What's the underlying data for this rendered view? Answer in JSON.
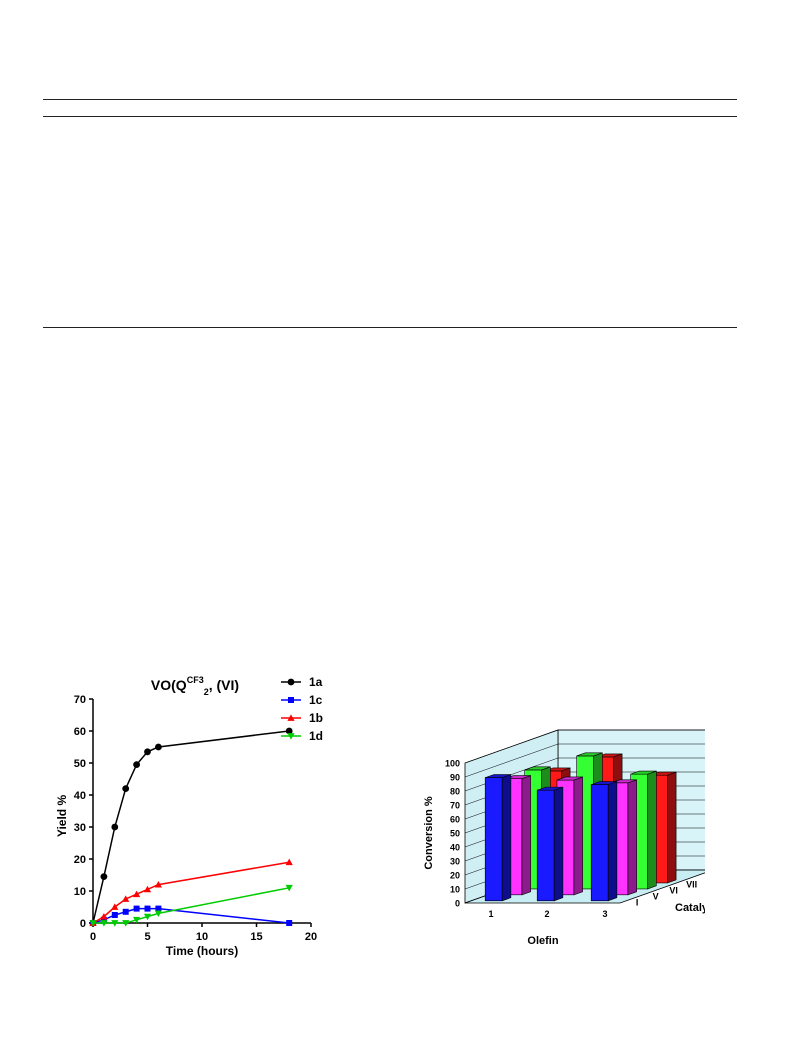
{
  "chart_data": [
    {
      "type": "line",
      "title_main": "VO(Q",
      "title_sup": "CF3",
      "title_sub": "2",
      "title_tail": ", (VI)",
      "xlabel": "Time (hours)",
      "ylabel": "Yield %",
      "xlim": [
        0,
        20
      ],
      "ylim": [
        0,
        70
      ],
      "xticks": [
        0,
        5,
        10,
        15,
        20
      ],
      "yticks": [
        0,
        10,
        20,
        30,
        40,
        50,
        60,
        70
      ],
      "legend_position": "top-right",
      "series": [
        {
          "name": "1a",
          "color": "#000000",
          "marker": "circle",
          "x": [
            0,
            1,
            2,
            3,
            4,
            5,
            6,
            18
          ],
          "y": [
            0,
            14.5,
            30,
            42,
            49.5,
            53.5,
            55,
            60
          ]
        },
        {
          "name": "1c",
          "color": "#0000ff",
          "marker": "square",
          "x": [
            0,
            1,
            2,
            3,
            4,
            5,
            6,
            18
          ],
          "y": [
            0,
            1,
            2.5,
            3.5,
            4.5,
            4.5,
            4.5,
            0
          ]
        },
        {
          "name": "1b",
          "color": "#ff0000",
          "marker": "triangle-up",
          "x": [
            0,
            1,
            2,
            3,
            4,
            5,
            6,
            18
          ],
          "y": [
            0,
            2,
            5,
            7.5,
            9,
            10.5,
            12,
            19
          ]
        },
        {
          "name": "1d",
          "color": "#00cc00",
          "marker": "triangle-down",
          "x": [
            0,
            1,
            2,
            3,
            4,
            5,
            6,
            18
          ],
          "y": [
            0,
            0,
            0,
            0,
            1,
            2,
            3,
            11
          ]
        }
      ]
    },
    {
      "type": "bar",
      "subtype": "3d-grouped",
      "xlabel": "Olefin",
      "ylabel": "Conversion %",
      "zlabel": "Catalyst",
      "categories": [
        "1",
        "2",
        "3"
      ],
      "ylim": [
        0,
        100
      ],
      "yticks": [
        0,
        10,
        20,
        30,
        40,
        50,
        60,
        70,
        80,
        90,
        100
      ],
      "depth_labels": [
        "I",
        "V",
        "VI",
        "VII"
      ],
      "series": [
        {
          "name": "I",
          "color": "#1a1aff",
          "values": [
            88,
            79,
            83
          ]
        },
        {
          "name": "V",
          "color": "#ff33ff",
          "values": [
            83,
            82,
            80
          ]
        },
        {
          "name": "VI",
          "color": "#33ff33",
          "values": [
            85,
            95,
            82
          ]
        },
        {
          "name": "VII",
          "color": "#ff1a1a",
          "values": [
            80,
            90,
            77
          ]
        }
      ]
    }
  ]
}
